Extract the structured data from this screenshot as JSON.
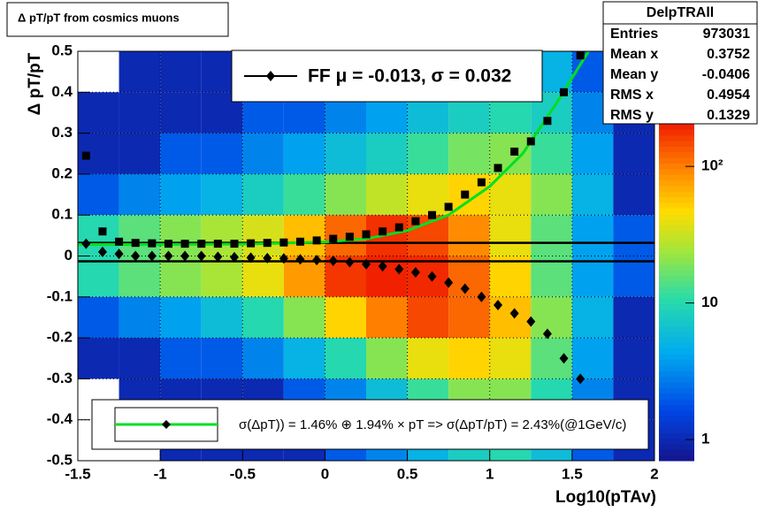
{
  "chart_data": {
    "type": "heatmap-profile",
    "title": "Δ pT/pT from cosmics muons",
    "x_label": "Log10(pTAv)",
    "y_label": "Δ pT/pT",
    "xlim": [
      -1.5,
      2
    ],
    "ylim": [
      -0.5,
      0.5
    ],
    "xticks": [
      -1.5,
      -1,
      -0.5,
      0,
      0.5,
      1,
      1.5,
      2
    ],
    "yticks": [
      -0.5,
      -0.4,
      -0.3,
      -0.2,
      -0.1,
      0,
      0.1,
      0.2,
      0.3,
      0.4,
      0.5
    ],
    "grid": true,
    "zlim": [
      0.7,
      205
    ],
    "zticks": [
      1,
      10,
      {
        "value": 100,
        "label": "10²"
      }
    ],
    "zlog": true,
    "heatmap": {
      "x_edges": [
        -1.5,
        -1.25,
        -1,
        -0.75,
        -0.5,
        -0.25,
        0,
        0.25,
        0.5,
        0.75,
        1,
        1.25,
        1.5,
        1.75,
        2
      ],
      "y_edges": [
        0.5,
        0.4,
        0.3,
        0.2,
        0.1,
        0,
        -0.1,
        -0.2,
        -0.3,
        -0.4,
        -0.5
      ],
      "counts": [
        [
          0,
          1,
          1,
          1,
          1,
          1,
          2,
          3,
          4,
          5,
          6,
          5,
          2,
          1
        ],
        [
          1,
          1,
          1,
          1,
          2,
          2,
          3,
          4,
          6,
          8,
          10,
          8,
          3,
          1
        ],
        [
          1,
          1,
          2,
          2,
          3,
          4,
          6,
          8,
          12,
          18,
          20,
          12,
          4,
          1
        ],
        [
          2,
          3,
          4,
          5,
          8,
          12,
          20,
          30,
          40,
          50,
          40,
          20,
          5,
          1
        ],
        [
          10,
          15,
          20,
          25,
          35,
          60,
          120,
          180,
          150,
          90,
          40,
          15,
          4,
          2
        ],
        [
          10,
          15,
          20,
          25,
          40,
          80,
          170,
          200,
          190,
          120,
          50,
          15,
          4,
          2
        ],
        [
          2,
          3,
          4,
          6,
          10,
          20,
          50,
          100,
          150,
          120,
          60,
          20,
          5,
          1
        ],
        [
          1,
          1,
          2,
          2,
          3,
          5,
          10,
          20,
          40,
          50,
          40,
          15,
          4,
          1
        ],
        [
          0,
          1,
          1,
          1,
          1,
          2,
          3,
          6,
          12,
          20,
          20,
          10,
          3,
          1
        ],
        [
          0,
          0,
          1,
          1,
          1,
          1,
          2,
          3,
          5,
          8,
          10,
          6,
          2,
          1
        ]
      ]
    },
    "x": [
      -1.45,
      -1.35,
      -1.25,
      -1.15,
      -1.05,
      -0.95,
      -0.85,
      -0.75,
      -0.65,
      -0.55,
      -0.45,
      -0.35,
      -0.25,
      -0.15,
      -0.05,
      0.05,
      0.15,
      0.25,
      0.35,
      0.45,
      0.55,
      0.65,
      0.75,
      0.85,
      0.95,
      1.05,
      1.15,
      1.25,
      1.35,
      1.45,
      1.55
    ],
    "series": [
      {
        "marker": "square",
        "color": "#000000",
        "values": [
          0.245,
          0.06,
          0.035,
          0.032,
          0.031,
          0.03,
          0.03,
          0.03,
          0.03,
          0.03,
          0.031,
          0.032,
          0.033,
          0.035,
          0.038,
          0.042,
          0.047,
          0.053,
          0.06,
          0.07,
          0.085,
          0.1,
          0.12,
          0.15,
          0.18,
          0.215,
          0.255,
          0.28,
          0.33,
          0.4,
          0.49
        ]
      },
      {
        "marker": "diamond",
        "color": "#000000",
        "values": [
          0.03,
          0.01,
          0.005,
          0,
          0,
          0,
          0,
          0,
          -0.002,
          -0.003,
          -0.004,
          -0.005,
          -0.006,
          -0.008,
          -0.01,
          -0.012,
          -0.015,
          -0.02,
          -0.025,
          -0.032,
          -0.04,
          -0.05,
          -0.065,
          -0.08,
          -0.1,
          -0.12,
          -0.14,
          -0.16,
          -0.19,
          -0.25,
          -0.3
        ]
      }
    ],
    "fit": {
      "color": "#00e020",
      "x": [
        -1.5,
        -1,
        -0.5,
        0,
        0.25,
        0.5,
        0.75,
        1,
        1.2,
        1.4,
        1.6
      ],
      "values": [
        0.028,
        0.028,
        0.029,
        0.034,
        0.042,
        0.062,
        0.1,
        0.17,
        0.25,
        0.37,
        0.5
      ]
    },
    "hlines": [
      0.032,
      -0.013
    ],
    "legend_top": "FF μ = -0.013, σ =   0.032",
    "legend_bottom": "σ(ΔpT)) =  1.46% ⊕  1.94% × pT => σ(ΔpT/pT) =  2.43%(@1GeV/c)",
    "stats": {
      "name": "DelpTRAll",
      "rows": [
        {
          "label": "Entries",
          "value": 973031
        },
        {
          "label": "Mean x",
          "value": 0.3752
        },
        {
          "label": "Mean y",
          "value": -0.0406
        },
        {
          "label": "RMS x",
          "value": 0.4954
        },
        {
          "label": "RMS y",
          "value": 0.1329
        }
      ]
    }
  }
}
